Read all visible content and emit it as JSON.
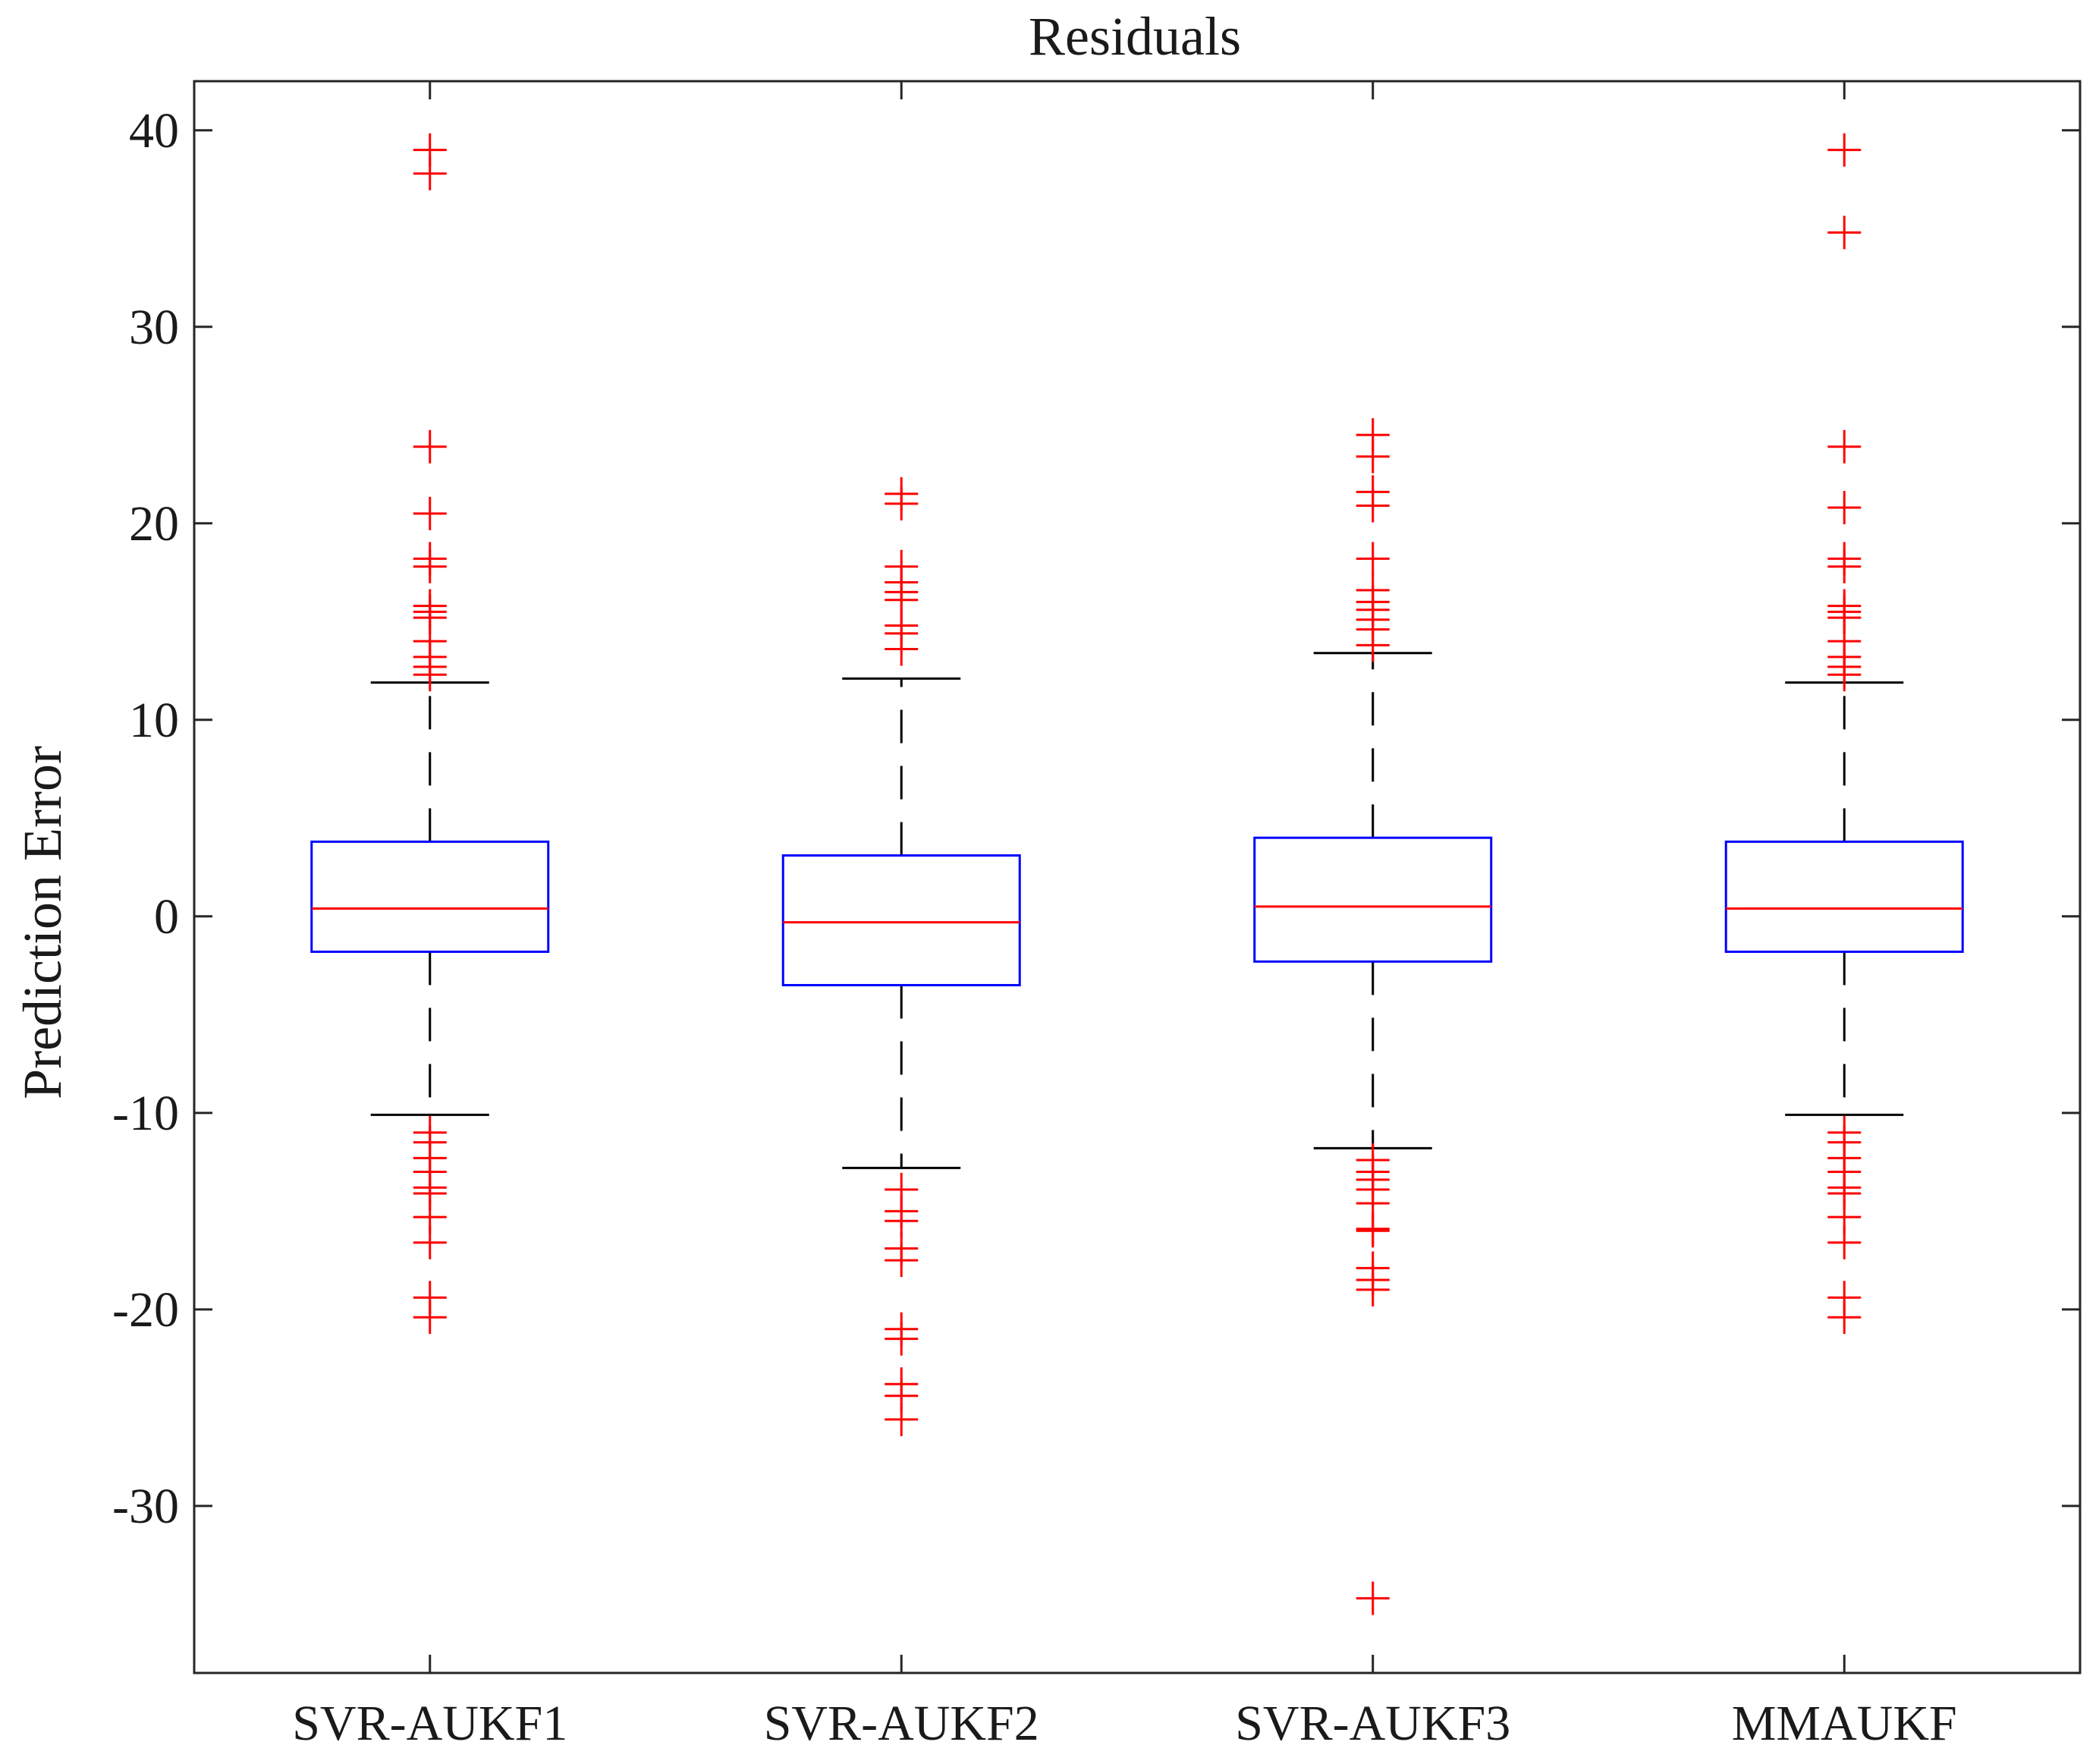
{
  "chart_data": {
    "type": "box",
    "title": "Residuals",
    "xlabel": "",
    "ylabel": "Prediction Error",
    "ylim": [
      -38.5,
      42.5
    ],
    "yticks": [
      -30,
      -20,
      -10,
      0,
      10,
      20,
      30,
      40
    ],
    "ytick_labels": [
      "-30",
      "-20",
      "-10",
      "0",
      "10",
      "20",
      "30",
      "40"
    ],
    "grid": false,
    "colors": {
      "box": "#0000ff",
      "median": "#ff0000",
      "whisker": "#000000",
      "outlier": "#ff0000",
      "axes": "#262626"
    },
    "categories": [
      "SVR-AUKF1",
      "SVR-AUKF2",
      "SVR-AUKF3",
      "MMAUKF"
    ],
    "series": [
      {
        "category": "SVR-AUKF1",
        "whisker_low": -10.1,
        "q1": -1.8,
        "median": 0.4,
        "q3": 3.8,
        "whisker_high": 11.9,
        "outliers": [
          39.0,
          37.8,
          23.9,
          20.5,
          18.2,
          17.8,
          15.8,
          15.5,
          15.2,
          14.0,
          13.2,
          12.7,
          12.3,
          -11.0,
          -11.5,
          -12.3,
          -13.0,
          -13.8,
          -14.1,
          -15.3,
          -16.6,
          -19.4,
          -20.4
        ]
      },
      {
        "category": "SVR-AUKF2",
        "whisker_low": -12.8,
        "q1": -3.5,
        "median": -0.3,
        "q3": 3.1,
        "whisker_high": 12.1,
        "outliers": [
          21.5,
          21.0,
          17.8,
          17.0,
          16.5,
          16.1,
          14.8,
          14.4,
          13.6,
          -13.9,
          -15.0,
          -15.5,
          -16.9,
          -17.5,
          -21.0,
          -21.5,
          -23.8,
          -24.4,
          -25.6
        ]
      },
      {
        "category": "SVR-AUKF3",
        "whisker_low": -11.8,
        "q1": -2.3,
        "median": 0.5,
        "q3": 4.0,
        "whisker_high": 13.4,
        "outliers": [
          24.5,
          23.4,
          21.6,
          20.9,
          18.2,
          16.6,
          16.0,
          15.6,
          15.1,
          14.6,
          13.8,
          -12.4,
          -13.0,
          -13.4,
          -13.9,
          -14.6,
          -15.9,
          -16.0,
          -17.9,
          -18.5,
          -19.0,
          -34.7
        ]
      },
      {
        "category": "MMAUKF",
        "whisker_low": -10.1,
        "q1": -1.8,
        "median": 0.4,
        "q3": 3.8,
        "whisker_high": 11.9,
        "outliers": [
          39.0,
          34.8,
          23.9,
          20.8,
          18.2,
          17.8,
          15.8,
          15.5,
          15.2,
          14.0,
          13.2,
          12.7,
          12.3,
          -11.0,
          -11.5,
          -12.3,
          -13.0,
          -13.8,
          -14.1,
          -15.3,
          -16.6,
          -19.4,
          -20.4
        ]
      }
    ]
  }
}
